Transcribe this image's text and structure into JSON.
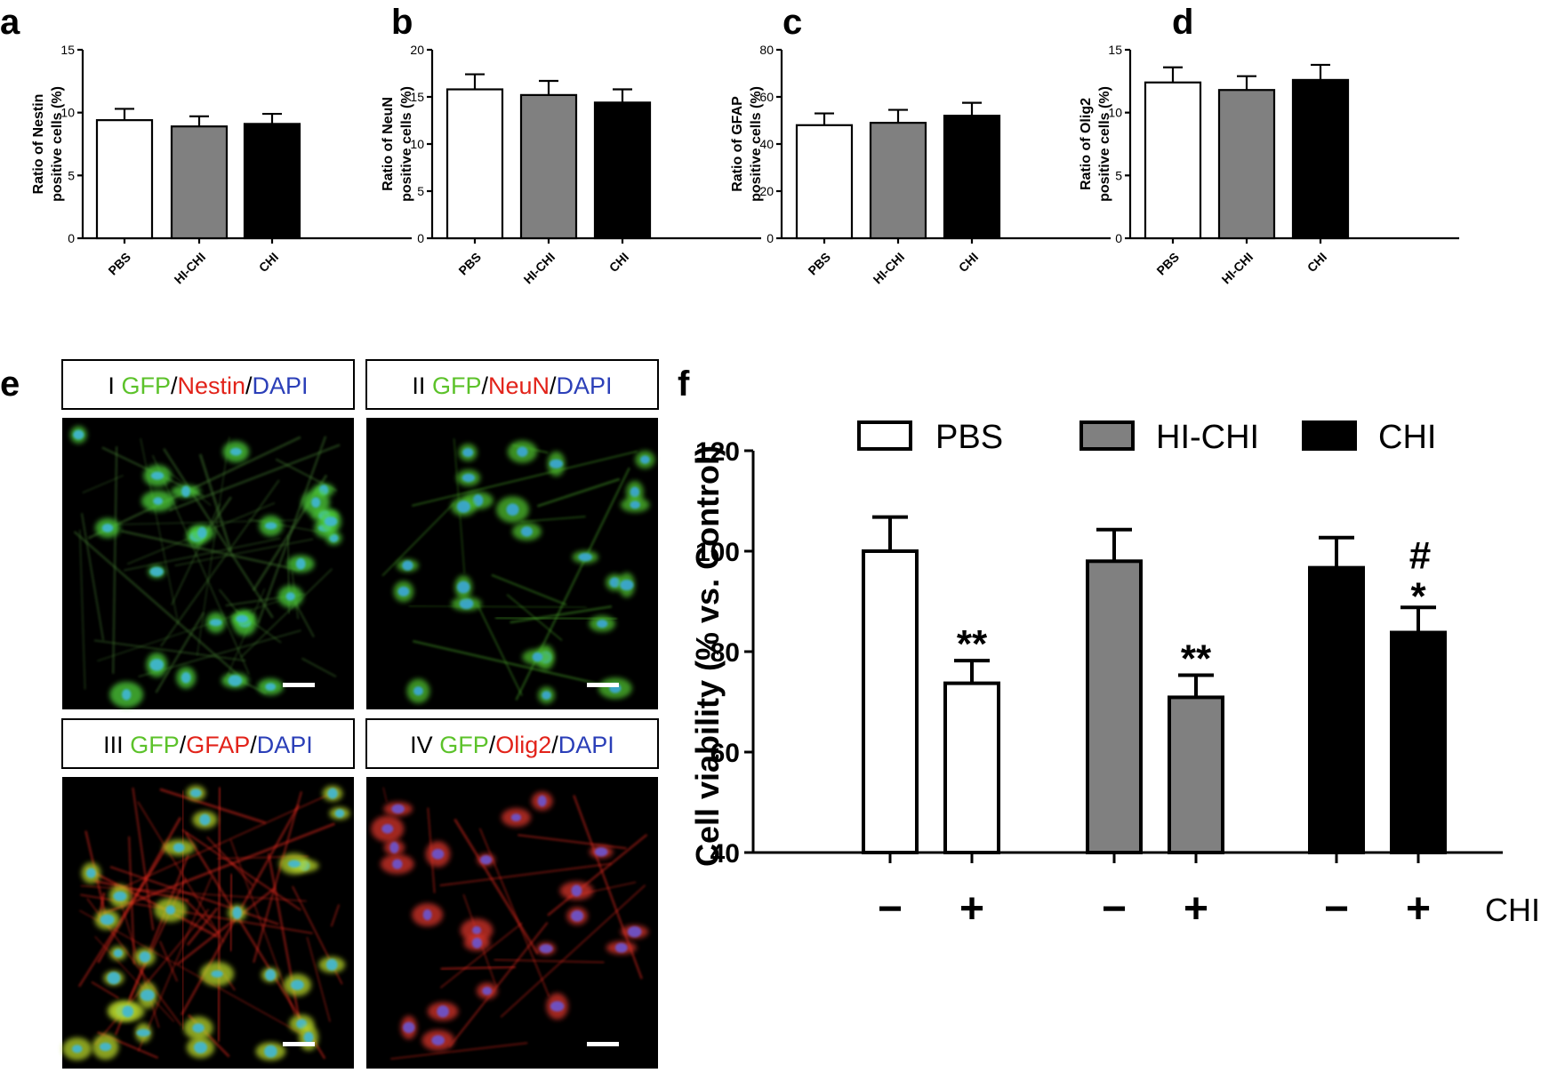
{
  "panel_letters": [
    "a",
    "b",
    "c",
    "d",
    "e",
    "f"
  ],
  "colors": {
    "PBS": "#ffffff",
    "HI-CHI": "#808080",
    "CHI": "#000000",
    "GFP": "#5cc22a",
    "marker": "#e2231a",
    "DAPI": "#2b3fb8"
  },
  "chart_data": [
    {
      "panel": "a",
      "type": "bar",
      "categories": [
        "PBS",
        "HI-CHI",
        "CHI"
      ],
      "values": [
        9.4,
        8.9,
        9.1
      ],
      "errors": [
        0.9,
        0.8,
        0.8
      ],
      "ylabel_lines": [
        "Ratio of Nestin",
        "positive cells (%)"
      ],
      "ylim": [
        0,
        15
      ],
      "yticks": [
        0,
        5,
        10,
        15
      ]
    },
    {
      "panel": "b",
      "type": "bar",
      "categories": [
        "PBS",
        "HI-CHI",
        "CHI"
      ],
      "values": [
        15.8,
        15.2,
        14.4
      ],
      "errors": [
        1.6,
        1.5,
        1.4
      ],
      "ylabel_lines": [
        "Ratio of NeuN",
        "positive cells (%)"
      ],
      "ylim": [
        0,
        20
      ],
      "yticks": [
        0,
        5,
        10,
        15,
        20
      ]
    },
    {
      "panel": "c",
      "type": "bar",
      "categories": [
        "PBS",
        "HI-CHI",
        "CHI"
      ],
      "values": [
        48,
        49,
        52
      ],
      "errors": [
        5,
        5.5,
        5.5
      ],
      "ylabel_lines": [
        "Ratio of GFAP",
        "positive cells (%)"
      ],
      "ylim": [
        0,
        80
      ],
      "yticks": [
        0,
        20,
        40,
        60,
        80
      ]
    },
    {
      "panel": "d",
      "type": "bar",
      "categories": [
        "PBS",
        "HI-CHI",
        "CHI"
      ],
      "values": [
        12.4,
        11.8,
        12.6
      ],
      "errors": [
        1.2,
        1.1,
        1.2
      ],
      "ylabel_lines": [
        "Ratio of Olig2",
        "positive cells (%)"
      ],
      "ylim": [
        0,
        15
      ],
      "yticks": [
        0,
        5,
        10,
        15
      ]
    },
    {
      "panel": "f",
      "type": "bar",
      "legend": [
        "PBS",
        "HI-CHI",
        "CHI"
      ],
      "legend_position": "top",
      "groups": [
        {
          "name": "PBS",
          "values": [
            100,
            73.7
          ],
          "errors": [
            6.8,
            4.5
          ],
          "marks": [
            "",
            "**"
          ]
        },
        {
          "name": "HI-CHI",
          "values": [
            98,
            70.9
          ],
          "errors": [
            6.3,
            4.4
          ],
          "marks": [
            "",
            "**"
          ]
        },
        {
          "name": "CHI",
          "values": [
            96.7,
            83.8
          ],
          "errors": [
            6,
            5
          ],
          "marks": [
            "",
            "#*"
          ]
        }
      ],
      "conditions": [
        "−",
        "+"
      ],
      "condition_label": "CHI",
      "ylabel": "Cell viability (% vs. Control)",
      "ylim": [
        40,
        120
      ],
      "yticks": [
        40,
        60,
        80,
        100,
        120
      ]
    }
  ],
  "images": {
    "I": {
      "roman": "I",
      "stain": "Nestin"
    },
    "II": {
      "roman": "II",
      "stain": "NeuN"
    },
    "III": {
      "roman": "III",
      "stain": "GFAP"
    },
    "IV": {
      "roman": "IV",
      "stain": "Olig2"
    },
    "gfp_label": "GFP",
    "dapi_label": "DAPI",
    "slash": "/"
  }
}
